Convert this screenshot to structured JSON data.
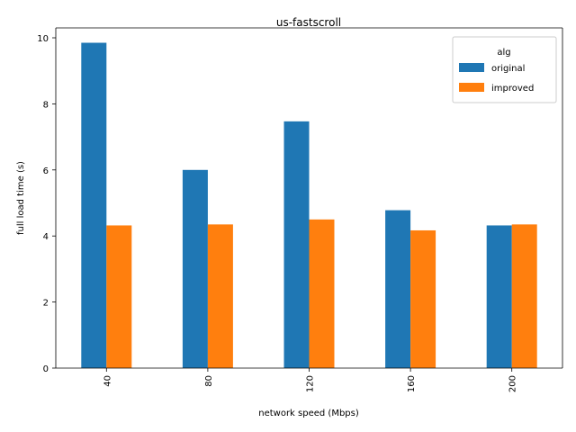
{
  "chart_data": {
    "type": "bar",
    "title": "us-fastscroll",
    "xlabel": "network speed (Mbps)",
    "ylabel": "full load time (s)",
    "categories": [
      "40",
      "80",
      "120",
      "160",
      "200"
    ],
    "ylim": [
      0,
      10.3
    ],
    "yticks": [
      0,
      2,
      4,
      6,
      8,
      10
    ],
    "legend": {
      "title": "alg",
      "position": "top-right"
    },
    "series": [
      {
        "name": "original",
        "color": "#1f77b4",
        "values": [
          9.85,
          6.0,
          7.47,
          4.78,
          4.32
        ]
      },
      {
        "name": "improved",
        "color": "#ff7f0e",
        "values": [
          4.32,
          4.35,
          4.5,
          4.17,
          4.35
        ]
      }
    ],
    "grid": false
  }
}
